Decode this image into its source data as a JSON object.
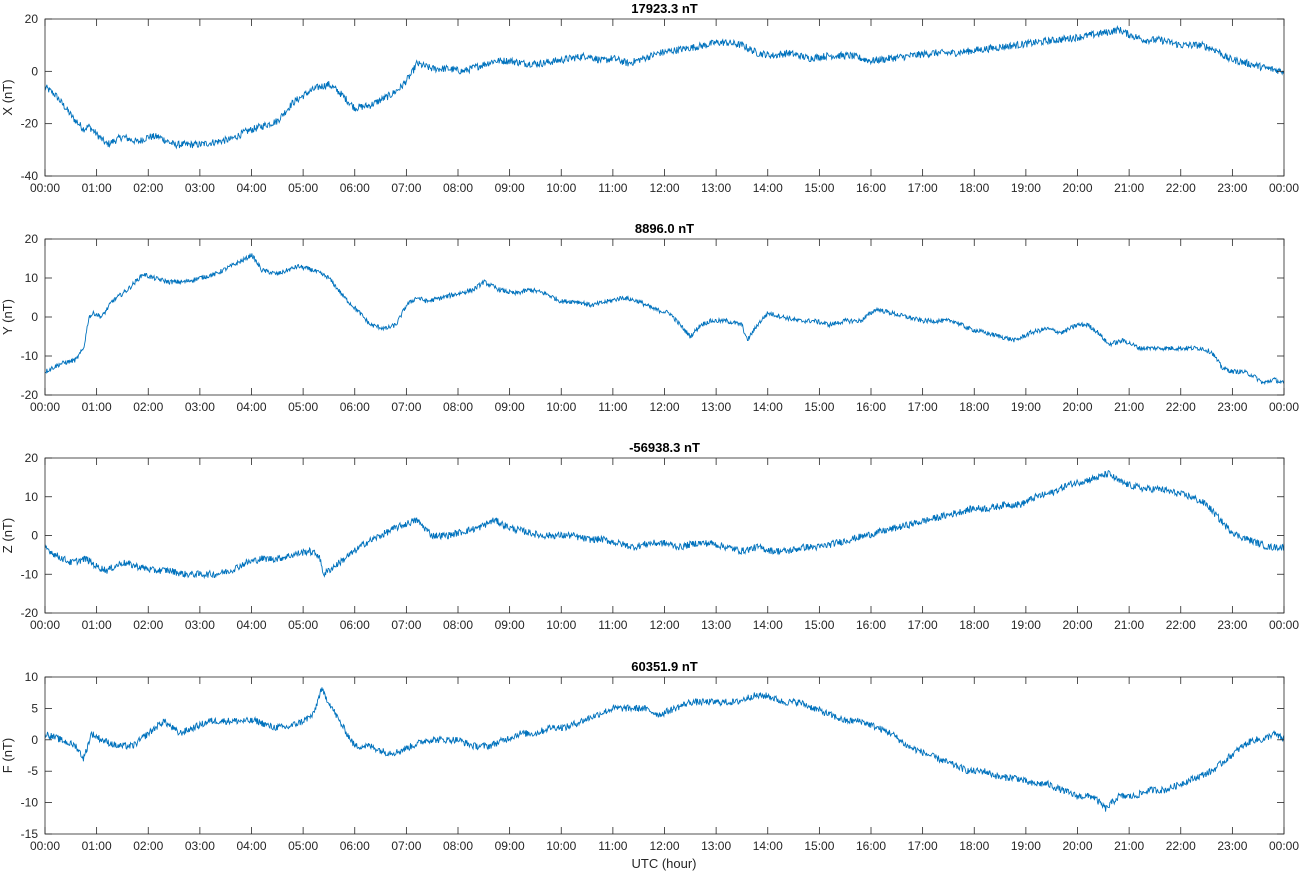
{
  "chart_data": {
    "type": "line",
    "xlabel": "UTC (hour)",
    "x_ticks": [
      "00:00",
      "01:00",
      "02:00",
      "03:00",
      "04:00",
      "05:00",
      "06:00",
      "07:00",
      "08:00",
      "09:00",
      "10:00",
      "11:00",
      "12:00",
      "13:00",
      "14:00",
      "15:00",
      "16:00",
      "17:00",
      "18:00",
      "19:00",
      "20:00",
      "21:00",
      "22:00",
      "23:00",
      "00:00"
    ],
    "x_range_hours": [
      0,
      24
    ],
    "line_color": "#0072BD",
    "grid": false,
    "panels": [
      {
        "title": "17923.3 nT",
        "ylabel": "X (nT)",
        "ylim": [
          -40,
          20
        ],
        "yticks": [
          -40,
          -20,
          0,
          20
        ],
        "noise": 1.4,
        "series": {
          "x": [
            0,
            0.2,
            0.4,
            0.55,
            0.75,
            0.85,
            1.0,
            1.2,
            1.5,
            1.8,
            2.0,
            2.2,
            2.5,
            2.8,
            3.0,
            3.3,
            3.6,
            3.9,
            4.2,
            4.5,
            4.8,
            5.1,
            5.3,
            5.5,
            5.7,
            6.0,
            6.3,
            6.5,
            6.7,
            6.9,
            7.1,
            7.2,
            7.5,
            7.8,
            8.1,
            8.4,
            8.7,
            9.0,
            9.3,
            9.6,
            9.9,
            10.2,
            10.5,
            10.8,
            11.0,
            11.3,
            11.6,
            11.9,
            12.2,
            12.5,
            12.8,
            13.0,
            13.2,
            13.5,
            13.8,
            14.1,
            14.4,
            14.8,
            15.2,
            15.6,
            16.0,
            16.4,
            16.8,
            17.2,
            17.6,
            18.0,
            18.4,
            18.8,
            19.2,
            19.6,
            20.0,
            20.3,
            20.6,
            20.8,
            21.0,
            21.3,
            21.6,
            22.0,
            22.4,
            22.7,
            22.9,
            23.1,
            23.3,
            23.5,
            23.7,
            24.0
          ],
          "y": [
            -6,
            -9,
            -14,
            -18,
            -22,
            -21,
            -24,
            -28,
            -25,
            -27,
            -25,
            -25,
            -28,
            -28,
            -28,
            -27,
            -26,
            -23,
            -21,
            -19,
            -12,
            -8,
            -6,
            -5,
            -8,
            -14,
            -13,
            -11,
            -9,
            -6,
            -1,
            3,
            1,
            1,
            0,
            2,
            4,
            4,
            3,
            3,
            4,
            5,
            6,
            4,
            5,
            3,
            5,
            7,
            8,
            9,
            10,
            11,
            11,
            10,
            7,
            6,
            7,
            5,
            6,
            6,
            4,
            5,
            6,
            7,
            7,
            8,
            9,
            10,
            11,
            12,
            13,
            14,
            15,
            16,
            14,
            12,
            12,
            10,
            10,
            8,
            5,
            4,
            3,
            2,
            1,
            0
          ]
        }
      },
      {
        "title": "8896.0 nT",
        "ylabel": "Y (nT)",
        "ylim": [
          -20,
          20
        ],
        "yticks": [
          -20,
          -10,
          0,
          10,
          20
        ],
        "noise": 0.6,
        "series": {
          "x": [
            0,
            0.3,
            0.6,
            0.75,
            0.85,
            0.95,
            1.1,
            1.3,
            1.6,
            1.9,
            2.1,
            2.4,
            2.7,
            3.0,
            3.3,
            3.6,
            3.9,
            4.0,
            4.2,
            4.5,
            4.9,
            5.2,
            5.5,
            5.8,
            6.1,
            6.3,
            6.6,
            6.8,
            7.0,
            7.2,
            7.4,
            7.7,
            8.0,
            8.3,
            8.5,
            8.8,
            9.1,
            9.4,
            9.7,
            10.0,
            10.3,
            10.6,
            10.9,
            11.2,
            11.5,
            11.8,
            12.1,
            12.3,
            12.5,
            12.7,
            12.9,
            13.2,
            13.5,
            13.6,
            13.8,
            14.0,
            14.3,
            14.6,
            14.9,
            15.2,
            15.5,
            15.8,
            16.1,
            16.4,
            16.7,
            17.0,
            17.3,
            17.6,
            17.9,
            18.2,
            18.5,
            18.8,
            19.1,
            19.4,
            19.7,
            20.0,
            20.2,
            20.4,
            20.6,
            20.9,
            21.2,
            21.5,
            21.8,
            22.1,
            22.4,
            22.6,
            22.8,
            23.0,
            23.2,
            23.4,
            23.6,
            23.8,
            24.0
          ],
          "y": [
            -14,
            -12,
            -11,
            -8,
            0,
            1,
            0,
            4,
            7,
            11,
            10,
            9,
            9,
            10,
            11,
            13,
            15,
            16,
            12,
            11,
            13,
            12,
            10,
            5,
            1,
            -2,
            -3,
            -2,
            3,
            5,
            4,
            5,
            6,
            7,
            9,
            7,
            6,
            7,
            6,
            4,
            4,
            3,
            4,
            5,
            4,
            2,
            1,
            -2,
            -5,
            -2,
            -1,
            -1,
            -2,
            -6,
            -2,
            1,
            0,
            -1,
            -1,
            -2,
            -1,
            -1,
            2,
            1,
            0,
            -1,
            -1,
            -1,
            -3,
            -4,
            -5,
            -6,
            -4,
            -3,
            -4,
            -2,
            -2,
            -4,
            -7,
            -6,
            -8,
            -8,
            -8,
            -8,
            -8,
            -9,
            -13,
            -14,
            -14,
            -15,
            -17,
            -16,
            -17
          ]
        }
      },
      {
        "title": "-56938.3 nT",
        "ylabel": "Z (nT)",
        "ylim": [
          -20,
          20
        ],
        "yticks": [
          -20,
          -10,
          0,
          10,
          20
        ],
        "noise": 0.9,
        "series": {
          "x": [
            0,
            0.2,
            0.5,
            0.8,
            1.0,
            1.2,
            1.5,
            1.8,
            2.1,
            2.4,
            2.7,
            3.0,
            3.3,
            3.6,
            3.9,
            4.2,
            4.5,
            4.8,
            5.1,
            5.3,
            5.4,
            5.6,
            5.9,
            6.2,
            6.5,
            6.8,
            7.0,
            7.2,
            7.5,
            7.8,
            8.1,
            8.4,
            8.7,
            9.0,
            9.3,
            9.6,
            9.9,
            10.2,
            10.5,
            10.8,
            11.1,
            11.4,
            11.7,
            12.0,
            12.3,
            12.6,
            12.9,
            13.2,
            13.5,
            13.8,
            14.1,
            14.4,
            14.7,
            15.0,
            15.3,
            15.6,
            15.9,
            16.2,
            16.5,
            16.8,
            17.1,
            17.4,
            17.7,
            18.0,
            18.3,
            18.6,
            18.9,
            19.2,
            19.5,
            19.8,
            20.1,
            20.4,
            20.6,
            20.8,
            21.0,
            21.3,
            21.6,
            21.9,
            22.2,
            22.5,
            22.7,
            22.9,
            23.1,
            23.3,
            23.5,
            23.7,
            24.0
          ],
          "y": [
            -3,
            -5,
            -7,
            -6,
            -8,
            -9,
            -7,
            -8,
            -9,
            -9,
            -10,
            -10,
            -10,
            -9,
            -7,
            -6,
            -6,
            -5,
            -4,
            -5,
            -10,
            -8,
            -5,
            -2,
            0,
            2,
            3,
            4,
            0,
            0,
            1,
            2,
            4,
            2,
            1,
            0,
            0,
            0,
            -1,
            -1,
            -2,
            -3,
            -2,
            -2,
            -3,
            -2,
            -2,
            -3,
            -4,
            -3,
            -4,
            -4,
            -3,
            -3,
            -2,
            -1,
            0,
            1,
            2,
            3,
            4,
            5,
            6,
            7,
            7,
            8,
            8,
            10,
            11,
            13,
            14,
            15,
            16,
            14,
            13,
            12,
            12,
            11,
            10,
            8,
            5,
            2,
            0,
            -1,
            -2,
            -3,
            -3
          ]
        }
      },
      {
        "title": "60351.9 nT",
        "ylabel": "F (nT)",
        "ylim": [
          -15,
          10
        ],
        "yticks": [
          -15,
          -10,
          -5,
          0,
          5,
          10
        ],
        "noise": 0.55,
        "series": {
          "x": [
            0,
            0.3,
            0.6,
            0.75,
            0.9,
            1.1,
            1.4,
            1.7,
            2.0,
            2.3,
            2.6,
            2.9,
            3.2,
            3.5,
            3.8,
            4.1,
            4.4,
            4.7,
            5.0,
            5.2,
            5.35,
            5.5,
            5.7,
            6.0,
            6.3,
            6.6,
            6.8,
            7.1,
            7.4,
            7.7,
            8.0,
            8.3,
            8.6,
            8.9,
            9.2,
            9.5,
            9.8,
            10.1,
            10.4,
            10.7,
            11.0,
            11.3,
            11.6,
            11.9,
            12.2,
            12.5,
            12.8,
            13.1,
            13.4,
            13.7,
            14.0,
            14.3,
            14.6,
            14.9,
            15.2,
            15.5,
            15.8,
            16.1,
            16.4,
            16.7,
            17.0,
            17.3,
            17.6,
            17.9,
            18.2,
            18.5,
            18.8,
            19.1,
            19.4,
            19.7,
            20.0,
            20.3,
            20.55,
            20.8,
            21.1,
            21.4,
            21.7,
            22.0,
            22.3,
            22.6,
            22.9,
            23.2,
            23.4,
            23.6,
            23.8,
            24.0
          ],
          "y": [
            1,
            0,
            -1,
            -3,
            1,
            0,
            -1,
            -1,
            1,
            3,
            1,
            2,
            3,
            3,
            3,
            3,
            2,
            2,
            3,
            4,
            8,
            6,
            3,
            -1,
            -1,
            -2,
            -2,
            -1,
            0,
            0,
            0,
            -1,
            -1,
            0,
            1,
            1,
            2,
            2,
            3,
            4,
            5,
            5,
            5,
            4,
            5,
            6,
            6,
            6,
            6,
            7,
            7,
            6,
            6,
            5,
            4,
            3,
            3,
            2,
            1,
            -1,
            -2,
            -3,
            -4,
            -5,
            -5,
            -6,
            -6,
            -7,
            -7,
            -8,
            -9,
            -9,
            -11,
            -9,
            -9,
            -8,
            -8,
            -7,
            -6,
            -5,
            -3,
            -1,
            0,
            0,
            1,
            0
          ]
        }
      }
    ]
  }
}
